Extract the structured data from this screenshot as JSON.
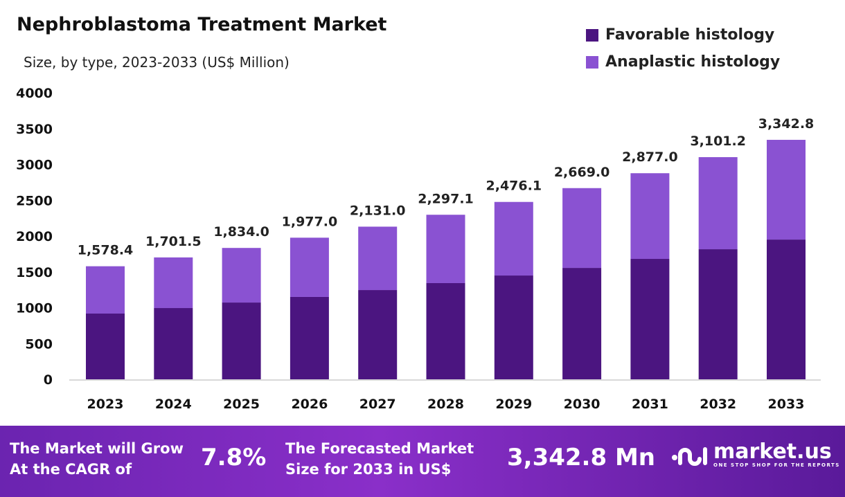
{
  "chart_data": {
    "type": "bar",
    "stacked": true,
    "title": "Nephroblastoma Treatment Market",
    "subtitle": "Size, by type, 2023-2033 (US$ Million)",
    "categories": [
      "2023",
      "2024",
      "2025",
      "2026",
      "2027",
      "2028",
      "2029",
      "2030",
      "2031",
      "2032",
      "2033"
    ],
    "series": [
      {
        "name": "Favorable histology",
        "color": "#4b1580",
        "values": [
          918,
          995,
          1072,
          1150,
          1246,
          1343,
          1449,
          1555,
          1681,
          1816,
          1951
        ]
      },
      {
        "name": "Anaplastic histology",
        "color": "#8a52d2",
        "values": [
          660.4,
          706.5,
          762.0,
          827.0,
          885.0,
          954.1,
          1027.1,
          1114.0,
          1196.0,
          1285.2,
          1391.8
        ]
      }
    ],
    "totals": [
      "1,578.4",
      "1,701.5",
      "1,834.0",
      "1,977.0",
      "2,131.0",
      "2,297.1",
      "2,476.1",
      "2,669.0",
      "2,877.0",
      "3,101.2",
      "3,342.8"
    ],
    "yticks": [
      "0",
      "500",
      "1000",
      "1500",
      "2000",
      "2500",
      "3000",
      "3500",
      "4000"
    ],
    "ylim": [
      0,
      4000
    ],
    "grid": false,
    "legend": "top-right"
  },
  "footer": {
    "cagr_label_1": "The Market will Grow",
    "cagr_label_2": "At the CAGR of",
    "cagr_value": "7.8%",
    "forecast_label_1": "The Forecasted Market",
    "forecast_label_2": "Size for 2033 in US$",
    "forecast_value": "3,342.8 Mn",
    "logo_text": "market.us",
    "logo_tagline": "ONE STOP SHOP FOR THE REPORTS"
  }
}
